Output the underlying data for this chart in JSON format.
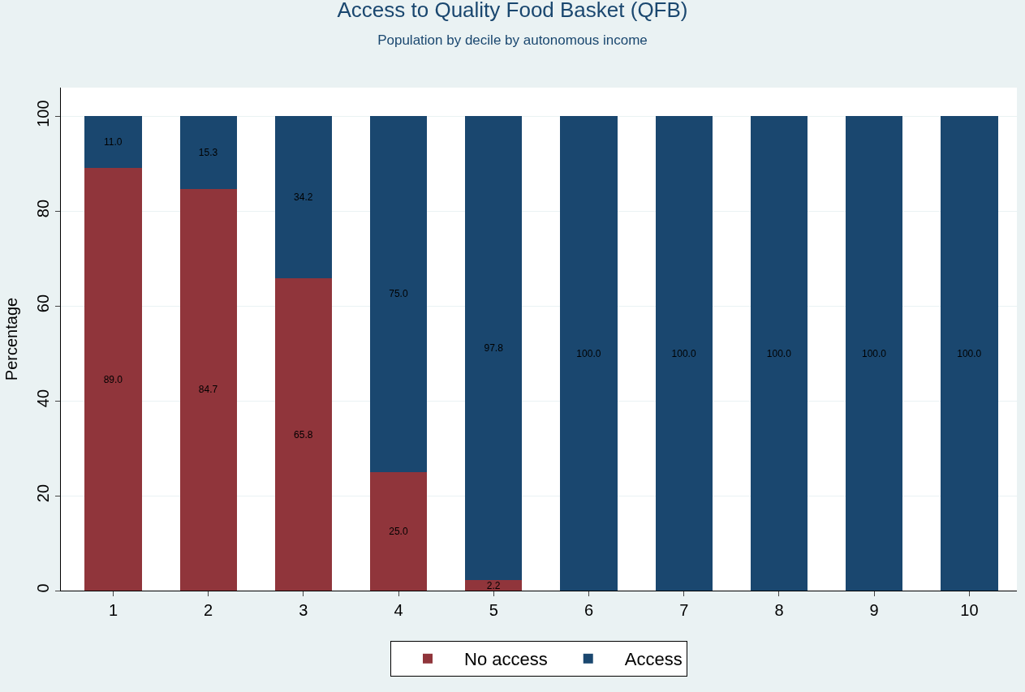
{
  "chart_data": {
    "type": "bar",
    "title": "Access to Quality Food Basket (QFB)",
    "subtitle": "Population by decile by autonomous income",
    "ylabel": "Percentage",
    "categories": [
      "1",
      "2",
      "3",
      "4",
      "5",
      "6",
      "7",
      "8",
      "9",
      "10"
    ],
    "series": [
      {
        "name": "No access",
        "color": "#90353b",
        "values": [
          89.0,
          84.7,
          65.8,
          25.0,
          2.2,
          0,
          0,
          0,
          0,
          0
        ],
        "value_labels": [
          "89.0",
          "84.7",
          "65.8",
          "25.0",
          "2.2",
          null,
          null,
          null,
          null,
          null
        ]
      },
      {
        "name": "Access",
        "color": "#1a476f",
        "values": [
          11.0,
          15.3,
          34.2,
          75.0,
          97.8,
          100.0,
          100.0,
          100.0,
          100.0,
          100.0
        ],
        "value_labels": [
          "11.0",
          "15.3",
          "34.2",
          "75.0",
          "97.8",
          "100.0",
          "100.0",
          "100.0",
          "100.0",
          "100.0"
        ]
      }
    ],
    "stacked": true,
    "ylim": [
      0,
      106
    ],
    "yticks": [
      0,
      20,
      40,
      60,
      80,
      100
    ],
    "grid": "y",
    "legend": "bottom"
  }
}
